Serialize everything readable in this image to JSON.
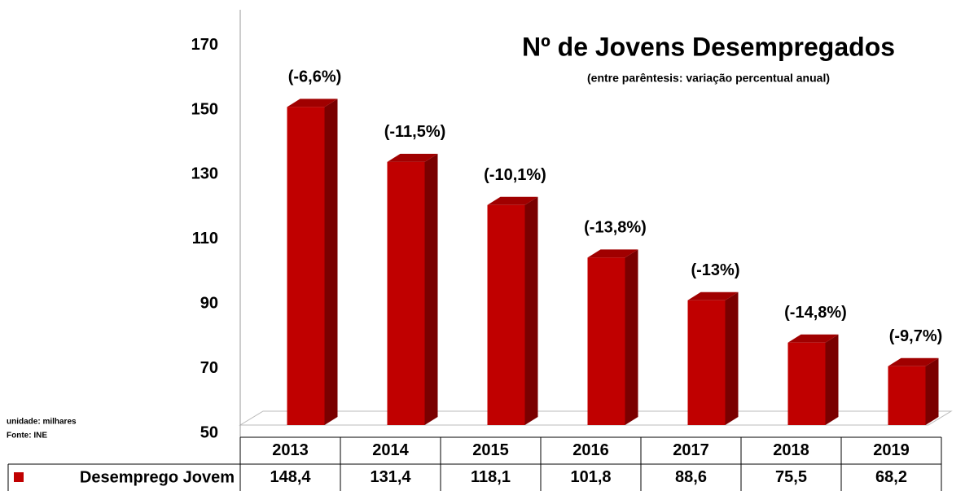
{
  "chart_data": {
    "type": "bar3d",
    "title": "Nº de Jovens Desempregados",
    "subtitle": "(entre parêntesis: variação percentual anual)",
    "notes": [
      "unidade: milhares",
      "Fonte: INE"
    ],
    "categories": [
      "2013",
      "2014",
      "2015",
      "2016",
      "2017",
      "2018",
      "2019"
    ],
    "series": [
      {
        "name": "Desemprego Jovem",
        "color": "#c00000",
        "values": [
          148.4,
          131.4,
          118.1,
          101.8,
          88.6,
          75.5,
          68.2
        ],
        "value_labels": [
          "148,4",
          "131,4",
          "118,1",
          "101,8",
          "88,6",
          "75,5",
          "68,2"
        ]
      }
    ],
    "annotations": [
      "(-6,6%)",
      "(-11,5%)",
      "(-10,1%)",
      "(-13,8%)",
      "(-13%)",
      "(-14,8%)",
      "(-9,7%)"
    ],
    "ylim": [
      50,
      180
    ],
    "yticks": [
      50,
      70,
      90,
      110,
      130,
      150,
      170
    ]
  }
}
